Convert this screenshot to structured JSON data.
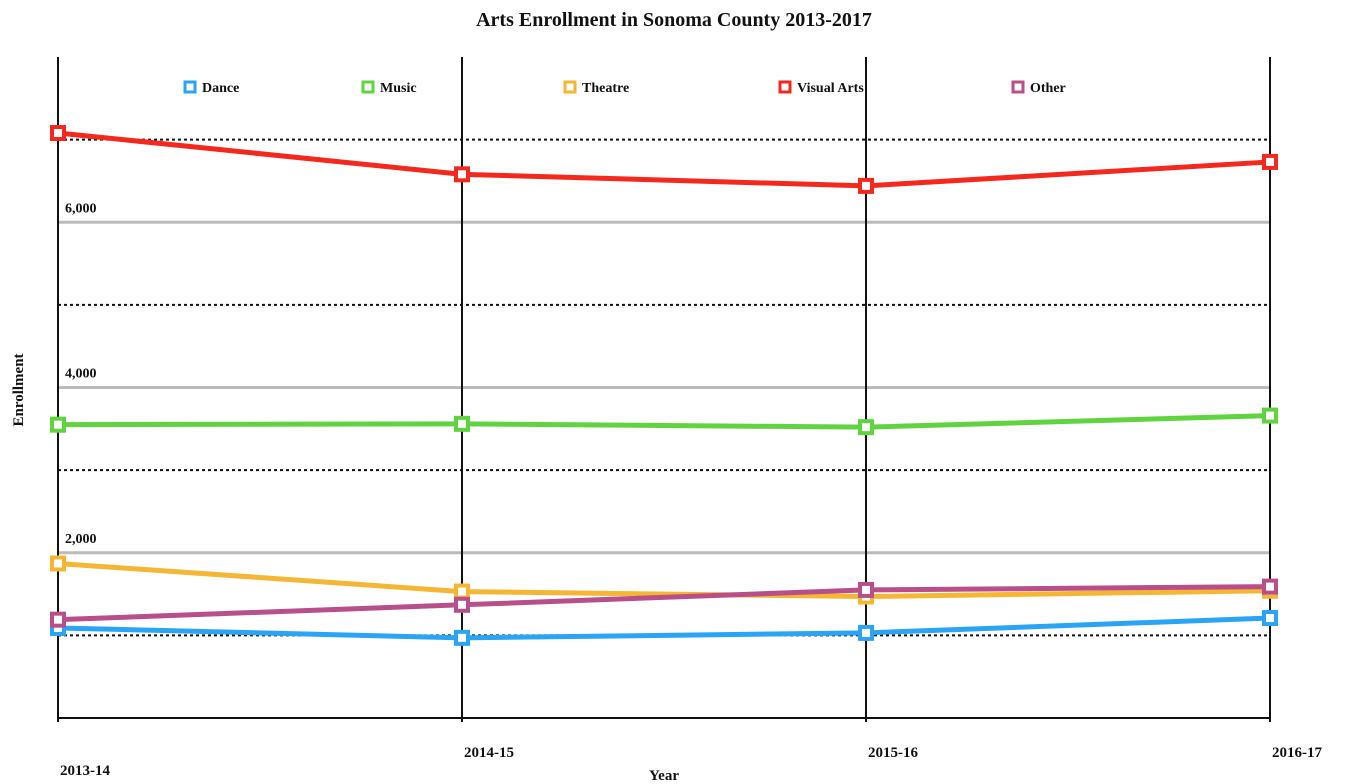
{
  "chart_data": {
    "type": "line",
    "title": "Arts Enrollment in Sonoma County 2013-2017",
    "x_label": "Year",
    "y_label": "Enrollment",
    "categories": [
      "2013-14",
      "2014-15",
      "2015-16",
      "2016-17"
    ],
    "series": [
      {
        "name": "Dance",
        "color": "#2aa5f5",
        "values": [
          1090,
          970,
          1030,
          1210
        ]
      },
      {
        "name": "Music",
        "color": "#5fd43f",
        "values": [
          3550,
          3560,
          3520,
          3660
        ]
      },
      {
        "name": "Theatre",
        "color": "#f5b633",
        "values": [
          1870,
          1530,
          1470,
          1540
        ]
      },
      {
        "name": "Visual Arts",
        "color": "#f5281e",
        "values": [
          7080,
          6580,
          6440,
          6730
        ]
      },
      {
        "name": "Other",
        "color": "#b84e8a",
        "values": [
          1190,
          1370,
          1550,
          1590
        ]
      }
    ],
    "ylim": [
      0,
      8000
    ],
    "yticks": [
      {
        "value": 2000,
        "label": "2,000"
      },
      {
        "value": 4000,
        "label": "4,000"
      },
      {
        "value": 6000,
        "label": "6,000"
      }
    ],
    "minor_yticks": [
      1000,
      3000,
      5000,
      7000
    ],
    "grid": true,
    "legend": "top"
  }
}
